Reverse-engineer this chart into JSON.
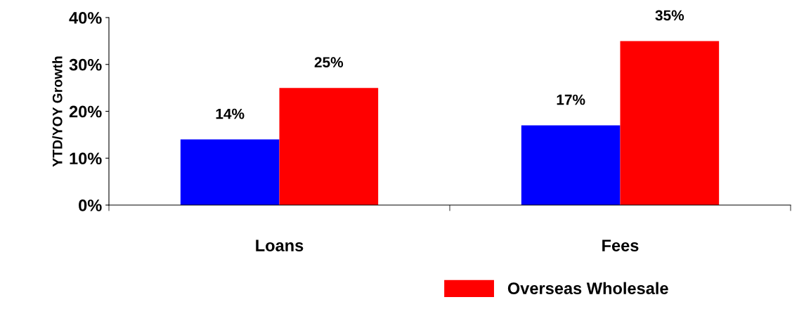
{
  "chart_data": {
    "type": "bar",
    "ylabel": "YTD/YOY Growth",
    "categories": [
      "Loans",
      "Fees"
    ],
    "series": [
      {
        "color": "#0000ff",
        "values": [
          14,
          17
        ],
        "value_labels": [
          "14%",
          "17%"
        ]
      },
      {
        "name": "Overseas Wholesale",
        "color": "#ff0000",
        "values": [
          25,
          35
        ],
        "value_labels": [
          "25%",
          "35%"
        ]
      }
    ],
    "ylim": [
      0,
      40
    ],
    "yticks": [
      {
        "value": 0,
        "label": "0%"
      },
      {
        "value": 10,
        "label": "10%"
      },
      {
        "value": 20,
        "label": "20%"
      },
      {
        "value": 30,
        "label": "30%"
      },
      {
        "value": 40,
        "label": "40%"
      }
    ],
    "grid": false,
    "legend": "bottom"
  }
}
